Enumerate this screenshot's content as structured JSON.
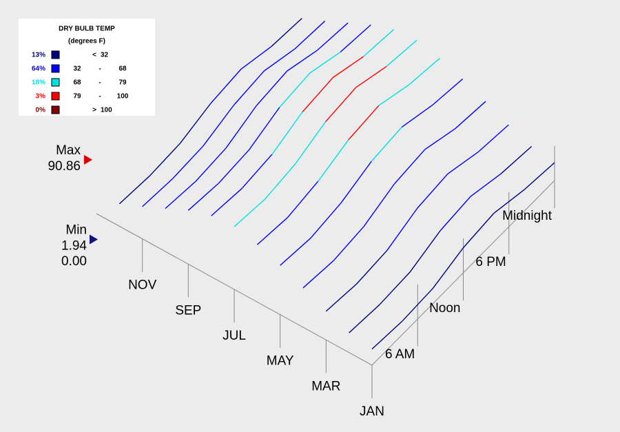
{
  "chart_data": {
    "type": "surface3d",
    "legend": {
      "title": "DRY BULB TEMP",
      "subtitle": "(degrees F)",
      "rows": [
        {
          "share": {
            "value": 13,
            "label": "13%"
          },
          "color": "#000080",
          "op": "<",
          "high": 32
        },
        {
          "share": {
            "value": 64,
            "label": "64%"
          },
          "color": "#0000ff",
          "low": 32,
          "op": "-",
          "high": 68
        },
        {
          "share": {
            "value": 18,
            "label": "18%"
          },
          "color": "#00e0e0",
          "low": 68,
          "op": "-",
          "high": 79
        },
        {
          "share": {
            "value": 3,
            "label": "3%"
          },
          "color": "#ff0000",
          "low": 79,
          "op": "-",
          "high": 100
        },
        {
          "share": {
            "value": 0,
            "label": "0%"
          },
          "color": "#800000",
          "op": ">",
          "low": 100
        }
      ]
    },
    "max_label": "Max",
    "max_value": 90.86,
    "min_label": "Min",
    "min_value": 1.94,
    "base_value": {
      "value": 0,
      "label": "0.00"
    },
    "categories": [
      "JAN",
      null,
      "MAR",
      null,
      "MAY",
      null,
      "JUL",
      null,
      "SEP",
      null,
      "NOV",
      null
    ],
    "x": [
      0,
      4,
      8,
      12,
      16,
      20,
      24
    ],
    "xlim": [
      0,
      24
    ],
    "xticks": [
      {
        "value": 6,
        "label": "6 AM"
      },
      {
        "value": 12,
        "label": "Noon"
      },
      {
        "value": 18,
        "label": "6 PM"
      },
      {
        "value": 24,
        "label": "Midnight"
      }
    ],
    "series": [
      {
        "values": [
          18,
          15,
          17,
          28,
          32,
          24,
          20
        ]
      },
      {
        "values": [
          22,
          19,
          21,
          33,
          37,
          28,
          24
        ]
      },
      {
        "values": [
          32,
          28,
          31,
          44,
          48,
          38,
          34
        ]
      },
      {
        "values": [
          44,
          40,
          44,
          57,
          61,
          50,
          46
        ]
      },
      {
        "values": [
          55,
          51,
          56,
          68,
          72,
          62,
          57
        ]
      },
      {
        "values": [
          64,
          60,
          66,
          78,
          82,
          71,
          66
        ]
      },
      {
        "values": [
          70,
          66,
          71,
          84,
          88,
          77,
          72
        ]
      },
      {
        "values": [
          68,
          64,
          68,
          81,
          85,
          74,
          70
        ]
      },
      {
        "values": [
          60,
          56,
          59,
          72,
          76,
          65,
          61
        ]
      },
      {
        "values": [
          48,
          44,
          47,
          60,
          64,
          53,
          49
        ]
      },
      {
        "values": [
          36,
          33,
          35,
          46,
          50,
          40,
          37
        ]
      },
      {
        "values": [
          25,
          22,
          24,
          34,
          38,
          29,
          26
        ]
      }
    ]
  }
}
